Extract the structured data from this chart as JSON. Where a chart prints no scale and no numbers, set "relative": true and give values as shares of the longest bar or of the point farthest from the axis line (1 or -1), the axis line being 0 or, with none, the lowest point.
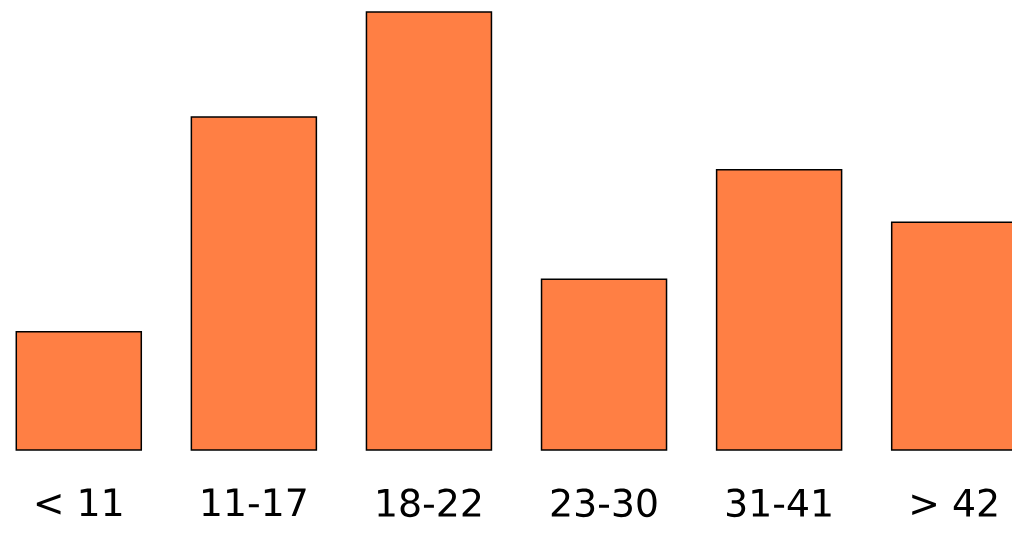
{
  "chart_data": {
    "type": "bar",
    "relative": true,
    "categories": [
      "< 11",
      "11-17",
      "18-22",
      "23-30",
      "31-41",
      "> 42"
    ],
    "values": [
      0.27,
      0.76,
      1,
      0.39,
      0.64,
      0.52
    ],
    "color": "#ff7f44"
  }
}
